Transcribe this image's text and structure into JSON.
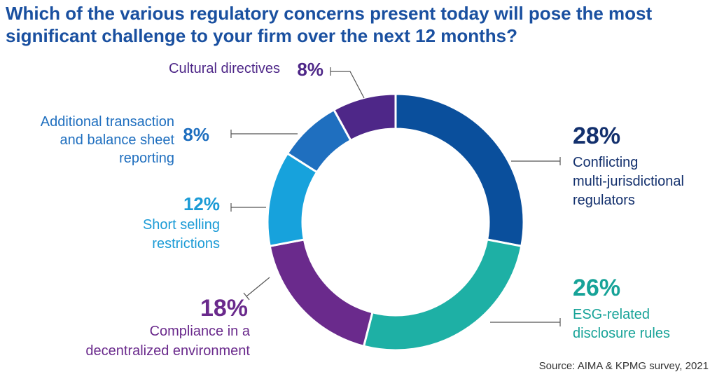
{
  "chart_data": {
    "type": "pie",
    "title": "Which of the various regulatory concerns present today will pose the most significant challenge to your firm over the next 12 months?",
    "source": "Source: AIMA & KPMG survey, 2021",
    "slices": [
      {
        "pct_label": "28%",
        "value": 28,
        "label_lines": [
          "Conflicting",
          "multi-jurisdictional",
          "regulators"
        ],
        "color": "#0a4f9c",
        "text_color": "#13306d"
      },
      {
        "pct_label": "26%",
        "value": 26,
        "label_lines": [
          "ESG-related",
          "disclosure rules"
        ],
        "color": "#1eb0a5",
        "text_color": "#17a398"
      },
      {
        "pct_label": "18%",
        "value": 18,
        "label_lines": [
          "Compliance in a",
          "decentralized environment"
        ],
        "color": "#6a2a8c",
        "text_color": "#6a2a8c"
      },
      {
        "pct_label": "12%",
        "value": 12,
        "label_lines": [
          "Short selling",
          "restrictions"
        ],
        "color": "#17a2dc",
        "text_color": "#1b9bd6"
      },
      {
        "pct_label": "8%",
        "value": 8,
        "label_lines": [
          "Additional transaction",
          "and balance sheet",
          "reporting"
        ],
        "color": "#1f6fbf",
        "text_color": "#1f6fbf"
      },
      {
        "pct_label": "8%",
        "value": 8,
        "label_lines": [
          "Cultural directives"
        ],
        "color": "#4e2788",
        "text_color": "#4e2788"
      }
    ]
  }
}
